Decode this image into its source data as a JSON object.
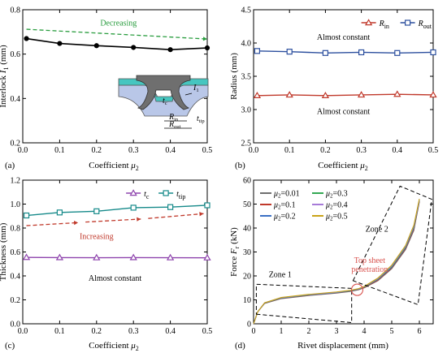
{
  "chart_data": [
    {
      "panel": "(a)",
      "type": "line",
      "xlabel": "Coefficient μ2",
      "ylabel": "Interlock I1 (mm)",
      "xlim": [
        0,
        0.5
      ],
      "ylim": [
        0.2,
        0.8
      ],
      "xticks": [
        "0.0",
        "0.1",
        "0.2",
        "0.3",
        "0.4",
        "0.5"
      ],
      "yticks": [
        "0.2",
        "0.4",
        "0.6",
        "0.8"
      ],
      "series": [
        {
          "x": [
            0.01,
            0.1,
            0.2,
            0.3,
            0.4,
            0.5
          ],
          "values": [
            0.67,
            0.648,
            0.638,
            0.63,
            0.62,
            0.628
          ]
        }
      ],
      "annotations": [
        "Decreasing"
      ],
      "inset_labels": [
        "I1",
        "tc",
        "Rin",
        "Rout",
        "ttip"
      ]
    },
    {
      "panel": "(b)",
      "type": "line",
      "xlabel": "Coefficient μ2",
      "ylabel": "Radius (mm)",
      "xlim": [
        0,
        0.5
      ],
      "ylim": [
        2.5,
        4.5
      ],
      "xticks": [
        "0.0",
        "0.1",
        "0.2",
        "0.3",
        "0.4",
        "0.5"
      ],
      "yticks": [
        "2.5",
        "3.0",
        "3.5",
        "4.0",
        "4.5"
      ],
      "series": [
        {
          "name": "Rin",
          "x": [
            0.01,
            0.1,
            0.2,
            0.3,
            0.4,
            0.5
          ],
          "values": [
            3.21,
            3.22,
            3.21,
            3.22,
            3.23,
            3.22
          ]
        },
        {
          "name": "Rout",
          "x": [
            0.01,
            0.1,
            0.2,
            0.3,
            0.4,
            0.5
          ],
          "values": [
            3.88,
            3.87,
            3.85,
            3.86,
            3.85,
            3.86
          ]
        }
      ],
      "annotations": [
        "Almost constant",
        "Almost constant"
      ]
    },
    {
      "panel": "(c)",
      "type": "line",
      "xlabel": "Coefficient μ2",
      "ylabel": "Thickness (mm)",
      "xlim": [
        0,
        0.5
      ],
      "ylim": [
        0,
        1.2
      ],
      "xticks": [
        "0.0",
        "0.1",
        "0.2",
        "0.3",
        "0.4",
        "0.5"
      ],
      "yticks": [
        "0.0",
        "0.2",
        "0.4",
        "0.6",
        "0.8",
        "1.0",
        "1.2"
      ],
      "series": [
        {
          "name": "tc",
          "x": [
            0.01,
            0.1,
            0.2,
            0.3,
            0.4,
            0.5
          ],
          "values": [
            0.555,
            0.553,
            0.552,
            0.553,
            0.552,
            0.551
          ]
        },
        {
          "name": "ttip",
          "x": [
            0.01,
            0.1,
            0.2,
            0.3,
            0.4,
            0.5
          ],
          "values": [
            0.905,
            0.93,
            0.94,
            0.97,
            0.975,
            0.99
          ]
        }
      ],
      "annotations": [
        "Increasing",
        "Almost constant"
      ]
    },
    {
      "panel": "(d)",
      "type": "line",
      "xlabel": "Rivet displacement (mm)",
      "ylabel": "Force Fr (kN)",
      "xlim": [
        0,
        6.5
      ],
      "ylim": [
        0,
        60
      ],
      "xticks": [
        "0",
        "1",
        "2",
        "3",
        "4",
        "5",
        "6"
      ],
      "yticks": [
        "0",
        "10",
        "20",
        "30",
        "40",
        "50",
        "60"
      ],
      "series": [
        {
          "name": "μ2=0.01",
          "color": "#6e6e6e",
          "x": [
            0,
            0.15,
            0.4,
            1,
            2,
            3,
            3.5,
            3.8,
            4,
            4.5,
            5,
            5.5,
            5.8,
            6
          ],
          "values": [
            0,
            5,
            8.5,
            10.5,
            11.8,
            12.8,
            13.5,
            14.2,
            15,
            18,
            23,
            31,
            39,
            51
          ]
        },
        {
          "name": "μ2=0.1",
          "color": "#c0392b",
          "x": [
            0,
            0.15,
            0.4,
            1,
            2,
            3,
            3.5,
            3.8,
            4,
            4.5,
            5,
            5.5,
            5.8,
            6
          ],
          "values": [
            0,
            5,
            8.6,
            10.6,
            11.9,
            12.9,
            13.6,
            14.3,
            15.1,
            18.2,
            23.3,
            31.4,
            39.5,
            51.2
          ]
        },
        {
          "name": "μ2=0.2",
          "color": "#3a6fc4",
          "x": [
            0,
            0.15,
            0.4,
            1,
            2,
            3,
            3.5,
            3.8,
            4,
            4.5,
            5,
            5.5,
            5.8,
            6
          ],
          "values": [
            0,
            5,
            8.7,
            10.7,
            12,
            13,
            13.7,
            14.4,
            15.3,
            18.5,
            23.6,
            31.8,
            40,
            51.5
          ]
        },
        {
          "name": "μ2=0.3",
          "color": "#34a853",
          "x": [
            0,
            0.15,
            0.4,
            1,
            2,
            3,
            3.5,
            3.8,
            4,
            4.5,
            5,
            5.5,
            5.8,
            6
          ],
          "values": [
            0,
            5,
            8.7,
            10.8,
            12.1,
            13.1,
            13.8,
            14.5,
            15.4,
            18.7,
            23.9,
            32.1,
            40.4,
            51.7
          ]
        },
        {
          "name": "μ2=0.4",
          "color": "#a77bd8",
          "x": [
            0,
            0.15,
            0.4,
            1,
            2,
            3,
            3.5,
            3.8,
            4,
            4.5,
            5,
            5.5,
            5.8,
            6
          ],
          "values": [
            0,
            5,
            8.8,
            10.9,
            12.2,
            13.2,
            13.9,
            14.6,
            15.5,
            18.9,
            24.2,
            32.4,
            40.8,
            51.9
          ]
        },
        {
          "name": "μ2=0.5",
          "color": "#c9a318",
          "x": [
            0,
            0.15,
            0.4,
            1,
            2,
            3,
            3.5,
            3.8,
            4,
            4.5,
            5,
            5.5,
            5.8,
            6
          ],
          "values": [
            0,
            5,
            8.8,
            11,
            12.3,
            13.3,
            14,
            14.7,
            15.6,
            19.1,
            24.5,
            32.7,
            41.2,
            52.2
          ]
        }
      ],
      "annotations": [
        "Zone 1",
        "Zone 2",
        "Top sheet penetration"
      ]
    }
  ]
}
